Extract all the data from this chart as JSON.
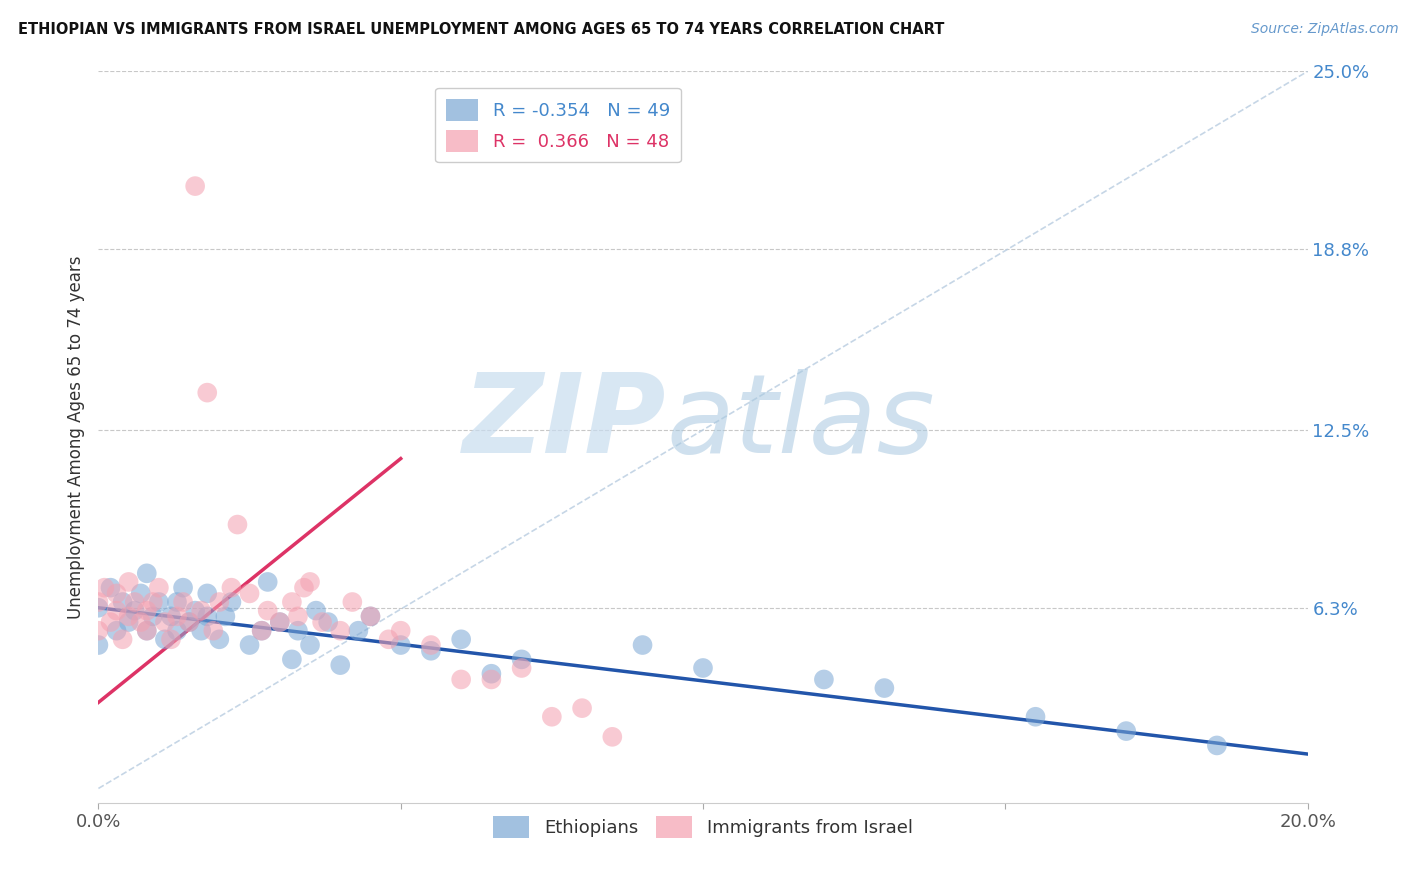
{
  "title": "ETHIOPIAN VS IMMIGRANTS FROM ISRAEL UNEMPLOYMENT AMONG AGES 65 TO 74 YEARS CORRELATION CHART",
  "source_text": "Source: ZipAtlas.com",
  "ylabel": "Unemployment Among Ages 65 to 74 years",
  "xlim": [
    0.0,
    0.2
  ],
  "ylim": [
    -0.005,
    0.25
  ],
  "yticks": [
    0.0,
    0.063,
    0.125,
    0.188,
    0.25
  ],
  "ytick_labels": [
    "",
    "6.3%",
    "12.5%",
    "18.8%",
    "25.0%"
  ],
  "xticks": [
    0.0,
    0.05,
    0.1,
    0.15,
    0.2
  ],
  "xtick_labels": [
    "0.0%",
    "",
    "",
    "",
    "20.0%"
  ],
  "grid_color": "#c8c8c8",
  "background_color": "#ffffff",
  "blue_color": "#7ba7d4",
  "pink_color": "#f4a0b0",
  "blue_line_color": "#2255aa",
  "pink_line_color": "#dd3366",
  "diag_line_color": "#b8cce0",
  "R_blue": -0.354,
  "N_blue": 49,
  "R_pink": 0.366,
  "N_pink": 48,
  "legend_label_blue": "Ethiopians",
  "legend_label_pink": "Immigrants from Israel",
  "blue_line_x": [
    0.0,
    0.2
  ],
  "blue_line_y": [
    0.063,
    0.012
  ],
  "pink_line_x": [
    0.0,
    0.05
  ],
  "pink_line_y": [
    0.03,
    0.115
  ],
  "diag_line_x": [
    0.0,
    0.2
  ],
  "diag_line_y": [
    0.0,
    0.25
  ],
  "blue_scatter_x": [
    0.0,
    0.0,
    0.002,
    0.003,
    0.004,
    0.005,
    0.006,
    0.007,
    0.008,
    0.008,
    0.009,
    0.01,
    0.011,
    0.012,
    0.013,
    0.013,
    0.014,
    0.015,
    0.016,
    0.017,
    0.018,
    0.018,
    0.02,
    0.021,
    0.022,
    0.025,
    0.027,
    0.028,
    0.03,
    0.032,
    0.033,
    0.035,
    0.036,
    0.038,
    0.04,
    0.043,
    0.045,
    0.05,
    0.055,
    0.06,
    0.065,
    0.07,
    0.09,
    0.1,
    0.12,
    0.13,
    0.155,
    0.17,
    0.185
  ],
  "blue_scatter_y": [
    0.063,
    0.05,
    0.07,
    0.055,
    0.065,
    0.058,
    0.062,
    0.068,
    0.055,
    0.075,
    0.06,
    0.065,
    0.052,
    0.06,
    0.055,
    0.065,
    0.07,
    0.058,
    0.062,
    0.055,
    0.06,
    0.068,
    0.052,
    0.06,
    0.065,
    0.05,
    0.055,
    0.072,
    0.058,
    0.045,
    0.055,
    0.05,
    0.062,
    0.058,
    0.043,
    0.055,
    0.06,
    0.05,
    0.048,
    0.052,
    0.04,
    0.045,
    0.05,
    0.042,
    0.038,
    0.035,
    0.025,
    0.02,
    0.015
  ],
  "pink_scatter_x": [
    0.0,
    0.0,
    0.001,
    0.002,
    0.003,
    0.003,
    0.004,
    0.005,
    0.005,
    0.006,
    0.007,
    0.008,
    0.008,
    0.009,
    0.01,
    0.011,
    0.012,
    0.013,
    0.014,
    0.015,
    0.016,
    0.017,
    0.018,
    0.019,
    0.02,
    0.022,
    0.023,
    0.025,
    0.027,
    0.028,
    0.03,
    0.032,
    0.033,
    0.034,
    0.035,
    0.037,
    0.04,
    0.042,
    0.045,
    0.048,
    0.05,
    0.055,
    0.06,
    0.065,
    0.07,
    0.075,
    0.08,
    0.085
  ],
  "pink_scatter_y": [
    0.065,
    0.055,
    0.07,
    0.058,
    0.062,
    0.068,
    0.052,
    0.06,
    0.072,
    0.065,
    0.058,
    0.062,
    0.055,
    0.065,
    0.07,
    0.058,
    0.052,
    0.06,
    0.065,
    0.058,
    0.21,
    0.062,
    0.138,
    0.055,
    0.065,
    0.07,
    0.092,
    0.068,
    0.055,
    0.062,
    0.058,
    0.065,
    0.06,
    0.07,
    0.072,
    0.058,
    0.055,
    0.065,
    0.06,
    0.052,
    0.055,
    0.05,
    0.038,
    0.038,
    0.042,
    0.025,
    0.028,
    0.018
  ]
}
